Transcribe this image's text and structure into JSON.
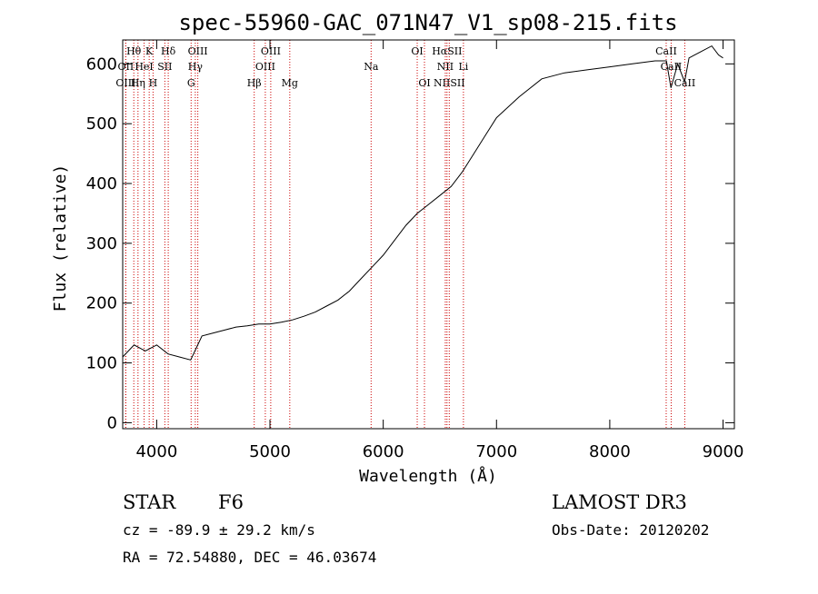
{
  "chart_data": {
    "type": "line",
    "title": "spec-55960-GAC_071N47_V1_sp08-215.fits",
    "xlabel": "Wavelength (Å)",
    "ylabel": "Flux (relative)",
    "xlim": [
      3700,
      9100
    ],
    "ylim": [
      -10,
      640
    ],
    "x_ticks": [
      4000,
      5000,
      6000,
      7000,
      8000,
      9000
    ],
    "y_ticks": [
      0,
      100,
      200,
      300,
      400,
      500,
      600
    ],
    "grid": false,
    "series": [
      {
        "name": "spectrum",
        "color": "#000000",
        "x": [
          3700,
          3800,
          3900,
          4000,
          4100,
          4200,
          4300,
          4400,
          4500,
          4600,
          4700,
          4800,
          4900,
          5000,
          5100,
          5200,
          5300,
          5400,
          5500,
          5600,
          5700,
          5800,
          5900,
          6000,
          6100,
          6200,
          6300,
          6400,
          6500,
          6600,
          6700,
          6800,
          6900,
          7000,
          7200,
          7400,
          7600,
          7800,
          8000,
          8200,
          8400,
          8500,
          8540,
          8600,
          8660,
          8700,
          8800,
          8900,
          8960,
          9000
        ],
        "y": [
          110,
          130,
          120,
          130,
          115,
          110,
          105,
          145,
          150,
          155,
          160,
          162,
          165,
          165,
          168,
          172,
          178,
          185,
          195,
          205,
          220,
          240,
          260,
          280,
          305,
          330,
          350,
          365,
          380,
          395,
          420,
          450,
          480,
          510,
          545,
          575,
          585,
          590,
          595,
          600,
          605,
          605,
          560,
          600,
          570,
          610,
          620,
          630,
          615,
          610
        ]
      }
    ],
    "spectral_lines": [
      {
        "label": "Hθ",
        "x": 3798,
        "row": 0
      },
      {
        "label": "K",
        "x": 3934,
        "row": 0
      },
      {
        "label": "Hδ",
        "x": 4102,
        "row": 0
      },
      {
        "label": "OIII",
        "x": 4363,
        "row": 0
      },
      {
        "label": "OIII",
        "x": 5007,
        "row": 0
      },
      {
        "label": "OI",
        "x": 6300,
        "row": 0
      },
      {
        "label": "HαSII",
        "x": 6563,
        "row": 0
      },
      {
        "label": "CaII",
        "x": 8498,
        "row": 0
      },
      {
        "label": "OII",
        "x": 3727,
        "row": 1
      },
      {
        "label": "HeI",
        "x": 3889,
        "row": 1
      },
      {
        "label": "SII",
        "x": 4072,
        "row": 1
      },
      {
        "label": "Hγ",
        "x": 4341,
        "row": 1
      },
      {
        "label": "OIII",
        "x": 4959,
        "row": 1
      },
      {
        "label": "Na",
        "x": 5893,
        "row": 1
      },
      {
        "label": "NII",
        "x": 6548,
        "row": 1
      },
      {
        "label": "Li",
        "x": 6708,
        "row": 1
      },
      {
        "label": "CaII",
        "x": 8542,
        "row": 1
      },
      {
        "label": "OIII",
        "x": 3727,
        "row": 2
      },
      {
        "label": "Hη",
        "x": 3835,
        "row": 2
      },
      {
        "label": "H",
        "x": 3968,
        "row": 2
      },
      {
        "label": "G",
        "x": 4304,
        "row": 2
      },
      {
        "label": "Hβ",
        "x": 4861,
        "row": 2
      },
      {
        "label": "Mg",
        "x": 5175,
        "row": 2
      },
      {
        "label": "OI",
        "x": 6364,
        "row": 2
      },
      {
        "label": "NIISII",
        "x": 6583,
        "row": 2
      },
      {
        "label": "CaII",
        "x": 8662,
        "row": 2
      }
    ],
    "line_marker_color": "#cc0000"
  },
  "info": {
    "object_class": "STAR",
    "subclass": "F6",
    "survey": "LAMOST DR3",
    "cz": "cz = -89.9 ± 29.2 km/s",
    "obs_date": "Obs-Date: 20120202",
    "coords": "RA =  72.54880, DEC =  46.03674"
  }
}
